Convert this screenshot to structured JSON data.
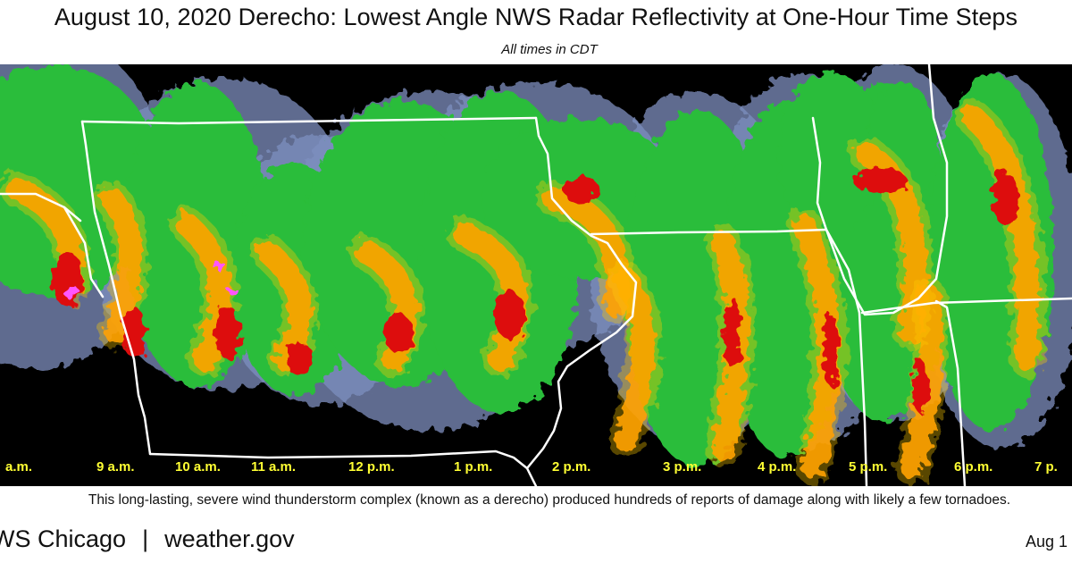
{
  "title": "August 10, 2020 Derecho:  Lowest Angle NWS Radar Reflectivity at One-Hour Time Steps",
  "subtitle": "All times in CDT",
  "time_labels": [
    "a.m.",
    "9 a.m.",
    "10 a.m.",
    "11 a.m.",
    "12 p.m.",
    "1 p.m.",
    "2 p.m.",
    "3 p.m.",
    "4 p.m.",
    "5 p.m.",
    "6 p.m.",
    "7 p."
  ],
  "caption": "This long-lasting, severe wind thunderstorm complex (known as a derecho) produced hundreds of reports of damage along with likely a few tornadoes.",
  "footer": {
    "office": "WS Chicago",
    "separator": "|",
    "website": "weather.gov",
    "date_fragment": "Aug 1"
  },
  "colors": {
    "background": "#000000",
    "state_borders": "#ffffff",
    "time_labels": "#ffff33",
    "radar_weak": "#7e8fbf",
    "radar_light": "#2bbd3a",
    "radar_moderate": "#ffcc00",
    "radar_heavy": "#ff8c00",
    "radar_intense": "#dd1111",
    "radar_extreme": "#ff55ff"
  },
  "map": {
    "layers": [
      "radar-reflectivity",
      "state-borders"
    ]
  }
}
